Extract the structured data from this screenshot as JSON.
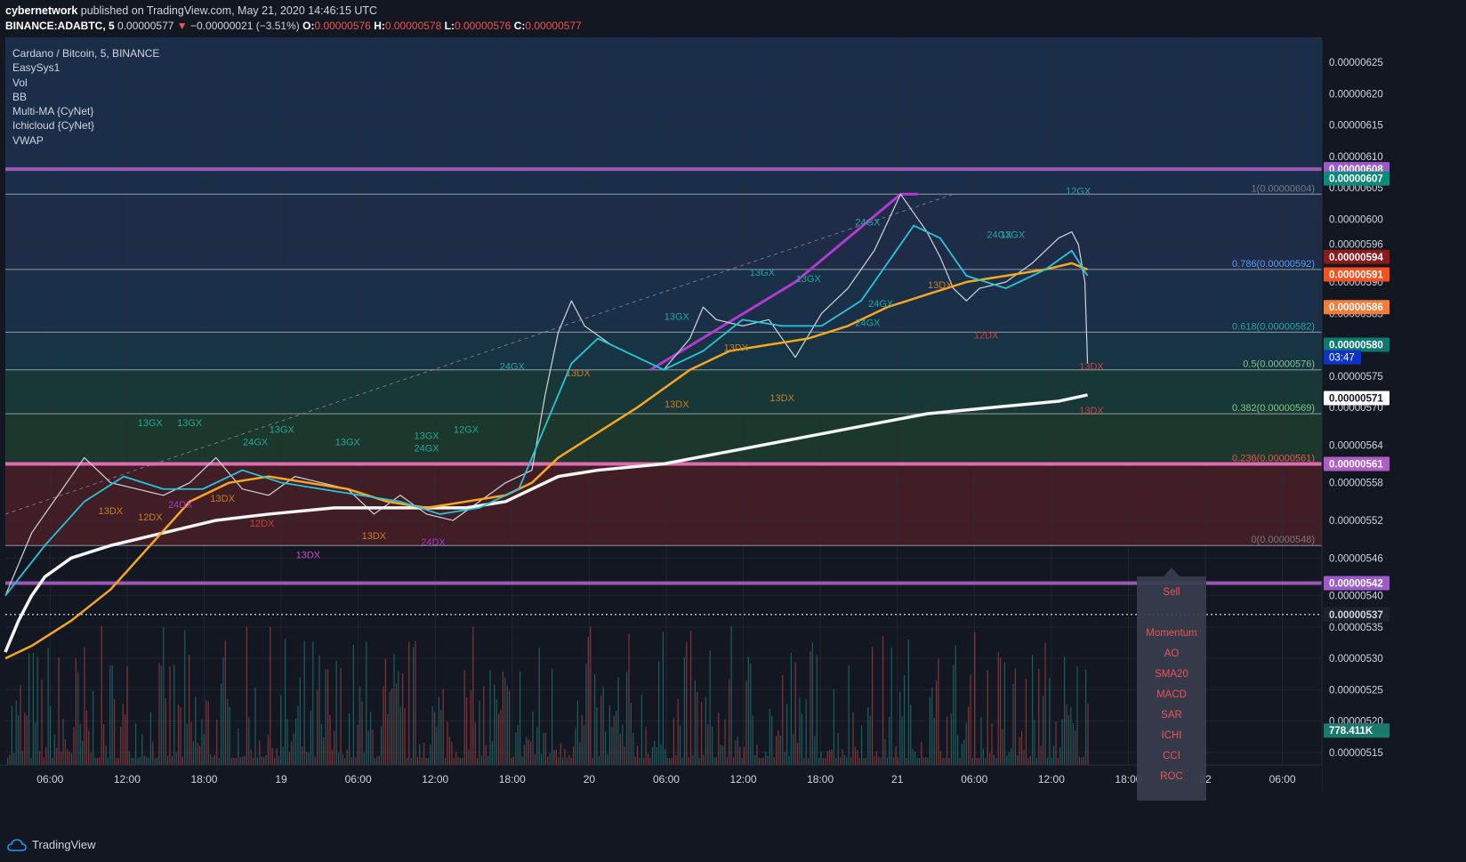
{
  "header": {
    "author": "cybernetwork",
    "published_text": "published on TradingView.com, May 21, 2020 14:46:15 UTC",
    "symbol_interval": "BINANCE:ADABTC, 5",
    "last_price": "0.00000577",
    "change_arrow": "▼",
    "change": "−0.00000021 (−3.51%)",
    "o_label": "O:",
    "o_value": "0.00000576",
    "h_label": "H:",
    "h_value": "0.00000578",
    "l_label": "L:",
    "l_value": "0.00000576",
    "c_label": "C:",
    "c_value": "0.00000577"
  },
  "legend": {
    "title": "Cardano / Bitcoin, 5, BINANCE",
    "indicators": [
      "EasySys1",
      "Vol",
      "BB",
      "Multi-MA {CyNet}",
      "Ichicloud {CyNet}",
      "VWAP"
    ]
  },
  "footer": {
    "brand": "TradingView"
  },
  "signal_panel": {
    "items": [
      "Sell",
      "Momentum",
      "AO",
      "SMA20",
      "MACD",
      "SAR",
      "ICHI",
      "CCI",
      "ROC"
    ]
  },
  "countdown": "03:47",
  "colors": {
    "background": "#131722",
    "grid": "#2a2e39",
    "fib_top": "#1d3557",
    "fib_mid": "#1f3a52",
    "fib_green": "#1b4332",
    "fib_red": "#5a1d24",
    "purple_line": "#9b59b6",
    "pink_line": "#e06bb0",
    "white_vwap": "#f5f5f5",
    "orange_ma": "#f5a623",
    "cyan_ma": "#26c6da",
    "red_ma": "#ef5350"
  },
  "chart_data": {
    "type": "line",
    "title": "Cardano / Bitcoin, 5, BINANCE",
    "xlabel": "",
    "ylabel": "",
    "ylim": [
      5.13e-06,
      6.29e-06
    ],
    "grid": true,
    "x_tick_labels": [
      "06:00",
      "12:00",
      "18:00",
      "19",
      "06:00",
      "12:00",
      "18:00",
      "20",
      "06:00",
      "12:00",
      "18:00",
      "21",
      "06:00",
      "12:00",
      "18:00",
      "22",
      "06:00"
    ],
    "y_tick_labels": [
      "0.00000625",
      "0.00000620",
      "0.00000615",
      "0.00000610",
      "0.00000605",
      "0.00000600",
      "0.00000596",
      "0.00000590",
      "0.00000585",
      "0.00000580",
      "0.00000575",
      "0.00000570",
      "0.00000564",
      "0.00000558",
      "0.00000552",
      "0.00000546",
      "0.00000540",
      "0.00000535",
      "0.00000530",
      "0.00000525",
      "0.00000520",
      "0.00000515"
    ],
    "fib_levels": [
      {
        "ratio": "1",
        "price": 6.04e-06,
        "label": "1(0.00000604)"
      },
      {
        "ratio": "0.786",
        "price": 5.92e-06,
        "label": "0.786(0.00000592)"
      },
      {
        "ratio": "0.618",
        "price": 5.82e-06,
        "label": "0.618(0.00000582)"
      },
      {
        "ratio": "0.5",
        "price": 5.76e-06,
        "label": "0.5(0.00000576)"
      },
      {
        "ratio": "0.382",
        "price": 5.69e-06,
        "label": "0.382(0.00000569)"
      },
      {
        "ratio": "0.236",
        "price": 5.61e-06,
        "label": "0.236(0.00000561)"
      },
      {
        "ratio": "0",
        "price": 5.48e-06,
        "label": "0(0.00000548)"
      }
    ],
    "horizontal_lines": [
      {
        "price": 6.08e-06,
        "color": "purple"
      },
      {
        "price": 5.61e-06,
        "color": "pink"
      },
      {
        "price": 5.42e-06,
        "color": "purple"
      },
      {
        "price": 5.37e-06,
        "color": "dotted"
      }
    ],
    "price_tags": [
      {
        "text": "0.00000608",
        "bg": "#9c5bc9",
        "fg": "#ffffff",
        "price": 6.08e-06
      },
      {
        "text": "0.00000607",
        "bg": "#0e8a7b",
        "fg": "#ffffff",
        "price": 6.065e-06
      },
      {
        "text": "0.00000594",
        "bg": "#8b1a1a",
        "fg": "#ffffff",
        "price": 5.94e-06
      },
      {
        "text": "0.00000591",
        "bg": "#f4511e",
        "fg": "#ffffff",
        "price": 5.912e-06
      },
      {
        "text": "0.00000586",
        "bg": "#f57c38",
        "fg": "#ffffff",
        "price": 5.86e-06
      },
      {
        "text": "0.00000580",
        "bg": "#0d7a6f",
        "fg": "#ffffff",
        "price": 5.8e-06
      },
      {
        "text": "0.00000571",
        "bg": "#ffffff",
        "fg": "#131722",
        "price": 5.715e-06
      },
      {
        "text": "0.00000561",
        "bg": "#b15bc4",
        "fg": "#ffffff",
        "price": 5.61e-06
      },
      {
        "text": "0.00000542",
        "bg": "#9c5bc9",
        "fg": "#ffffff",
        "price": 5.42e-06
      },
      {
        "text": "0.00000537",
        "bg": "#1e222d",
        "fg": "#d1d4dc",
        "price": 5.37e-06
      },
      {
        "text": "778.411K",
        "bg": "#1a7a6e",
        "fg": "#ffffff",
        "price": 5.185e-06
      }
    ],
    "signal_labels": [
      {
        "text": "13GX",
        "x": 0.11,
        "price": 5.67e-06,
        "color": "green"
      },
      {
        "text": "13GX",
        "x": 0.14,
        "price": 5.67e-06,
        "color": "green"
      },
      {
        "text": "24GX",
        "x": 0.19,
        "price": 5.64e-06,
        "color": "green"
      },
      {
        "text": "13GX",
        "x": 0.21,
        "price": 5.66e-06,
        "color": "green"
      },
      {
        "text": "13GX",
        "x": 0.26,
        "price": 5.64e-06,
        "color": "green"
      },
      {
        "text": "13GX",
        "x": 0.32,
        "price": 5.65e-06,
        "color": "green"
      },
      {
        "text": "24GX",
        "x": 0.32,
        "price": 5.63e-06,
        "color": "green"
      },
      {
        "text": "12GX",
        "x": 0.35,
        "price": 5.66e-06,
        "color": "green"
      },
      {
        "text": "24GX",
        "x": 0.385,
        "price": 5.76e-06,
        "color": "green"
      },
      {
        "text": "13GX",
        "x": 0.51,
        "price": 5.84e-06,
        "color": "green"
      },
      {
        "text": "13GX",
        "x": 0.575,
        "price": 5.91e-06,
        "color": "green"
      },
      {
        "text": "13GX",
        "x": 0.61,
        "price": 5.9e-06,
        "color": "green"
      },
      {
        "text": "24GX",
        "x": 0.655,
        "price": 5.99e-06,
        "color": "green"
      },
      {
        "text": "24GX",
        "x": 0.655,
        "price": 5.83e-06,
        "color": "green"
      },
      {
        "text": "24GX",
        "x": 0.665,
        "price": 5.86e-06,
        "color": "green"
      },
      {
        "text": "24GX",
        "x": 0.755,
        "price": 5.97e-06,
        "color": "green"
      },
      {
        "text": "13GX",
        "x": 0.765,
        "price": 5.97e-06,
        "color": "green"
      },
      {
        "text": "12GX",
        "x": 0.815,
        "price": 6.04e-06,
        "color": "green"
      },
      {
        "text": "13DX",
        "x": 0.08,
        "price": 5.53e-06,
        "color": "orange"
      },
      {
        "text": "12DX",
        "x": 0.11,
        "price": 5.52e-06,
        "color": "orange"
      },
      {
        "text": "13DX",
        "x": 0.165,
        "price": 5.55e-06,
        "color": "orange"
      },
      {
        "text": "12DX",
        "x": 0.195,
        "price": 5.51e-06,
        "color": "red"
      },
      {
        "text": "13DX",
        "x": 0.23,
        "price": 5.46e-06,
        "color": "orange"
      },
      {
        "text": "13DX",
        "x": 0.28,
        "price": 5.49e-06,
        "color": "orange"
      },
      {
        "text": "13DX",
        "x": 0.435,
        "price": 5.75e-06,
        "color": "orange"
      },
      {
        "text": "13DX",
        "x": 0.51,
        "price": 5.7e-06,
        "color": "orange"
      },
      {
        "text": "13DX",
        "x": 0.555,
        "price": 5.79e-06,
        "color": "orange"
      },
      {
        "text": "13DX",
        "x": 0.59,
        "price": 5.71e-06,
        "color": "orange"
      },
      {
        "text": "13DX",
        "x": 0.71,
        "price": 5.89e-06,
        "color": "orange"
      },
      {
        "text": "12DX",
        "x": 0.745,
        "price": 5.81e-06,
        "color": "red"
      },
      {
        "text": "13DX",
        "x": 0.825,
        "price": 5.76e-06,
        "color": "red"
      },
      {
        "text": "13DX",
        "x": 0.825,
        "price": 5.69e-06,
        "color": "red"
      },
      {
        "text": "24DX",
        "x": 0.133,
        "price": 5.54e-06,
        "color": "purple"
      },
      {
        "text": "13DX",
        "x": 0.23,
        "price": 5.46e-06,
        "color": "purple"
      },
      {
        "text": "24DX",
        "x": 0.325,
        "price": 5.48e-06,
        "color": "purple"
      }
    ],
    "series": [
      {
        "name": "price",
        "color": "#d1d4dc",
        "x": [
          0,
          0.02,
          0.04,
          0.06,
          0.08,
          0.1,
          0.12,
          0.14,
          0.16,
          0.18,
          0.2,
          0.22,
          0.24,
          0.26,
          0.28,
          0.3,
          0.32,
          0.34,
          0.36,
          0.38,
          0.4,
          0.41,
          0.42,
          0.43,
          0.44,
          0.46,
          0.48,
          0.5,
          0.52,
          0.53,
          0.54,
          0.56,
          0.58,
          0.6,
          0.62,
          0.64,
          0.66,
          0.68,
          0.69,
          0.7,
          0.71,
          0.72,
          0.73,
          0.74,
          0.76,
          0.78,
          0.8,
          0.81,
          0.815,
          0.82,
          0.822
        ],
        "y": [
          5.4e-06,
          5.5e-06,
          5.56e-06,
          5.62e-06,
          5.58e-06,
          5.57e-06,
          5.56e-06,
          5.58e-06,
          5.62e-06,
          5.57e-06,
          5.56e-06,
          5.59e-06,
          5.58e-06,
          5.57e-06,
          5.53e-06,
          5.56e-06,
          5.53e-06,
          5.52e-06,
          5.55e-06,
          5.58e-06,
          5.6e-06,
          5.72e-06,
          5.82e-06,
          5.87e-06,
          5.83e-06,
          5.8e-06,
          5.78e-06,
          5.76e-06,
          5.81e-06,
          5.86e-06,
          5.84e-06,
          5.83e-06,
          5.84e-06,
          5.78e-06,
          5.85e-06,
          5.89e-06,
          5.95e-06,
          6.04e-06,
          6.01e-06,
          5.98e-06,
          5.94e-06,
          5.89e-06,
          5.87e-06,
          5.89e-06,
          5.9e-06,
          5.93e-06,
          5.97e-06,
          5.98e-06,
          5.96e-06,
          5.9e-06,
          5.77e-06
        ]
      },
      {
        "name": "vwap",
        "color": "#f5f5f5",
        "x": [
          0,
          0.01,
          0.02,
          0.03,
          0.05,
          0.08,
          0.12,
          0.16,
          0.2,
          0.25,
          0.3,
          0.35,
          0.38,
          0.4,
          0.42,
          0.45,
          0.5,
          0.55,
          0.6,
          0.65,
          0.7,
          0.75,
          0.8,
          0.822
        ],
        "y": [
          5.31e-06,
          5.36e-06,
          5.4e-06,
          5.43e-06,
          5.46e-06,
          5.48e-06,
          5.5e-06,
          5.52e-06,
          5.53e-06,
          5.54e-06,
          5.54e-06,
          5.54e-06,
          5.55e-06,
          5.57e-06,
          5.59e-06,
          5.6e-06,
          5.61e-06,
          5.63e-06,
          5.65e-06,
          5.67e-06,
          5.69e-06,
          5.7e-06,
          5.71e-06,
          5.72e-06
        ]
      },
      {
        "name": "slow-ma",
        "color": "#f5a623",
        "x": [
          0,
          0.02,
          0.05,
          0.08,
          0.11,
          0.14,
          0.17,
          0.2,
          0.23,
          0.26,
          0.29,
          0.32,
          0.35,
          0.38,
          0.4,
          0.42,
          0.45,
          0.48,
          0.5,
          0.52,
          0.55,
          0.58,
          0.61,
          0.64,
          0.67,
          0.7,
          0.73,
          0.76,
          0.79,
          0.81,
          0.822
        ],
        "y": [
          5.3e-06,
          5.32e-06,
          5.36e-06,
          5.41e-06,
          5.48e-06,
          5.55e-06,
          5.58e-06,
          5.59e-06,
          5.58e-06,
          5.57e-06,
          5.55e-06,
          5.54e-06,
          5.55e-06,
          5.56e-06,
          5.58e-06,
          5.62e-06,
          5.66e-06,
          5.7e-06,
          5.73e-06,
          5.76e-06,
          5.79e-06,
          5.8e-06,
          5.81e-06,
          5.83e-06,
          5.86e-06,
          5.88e-06,
          5.9e-06,
          5.91e-06,
          5.92e-06,
          5.93e-06,
          5.92e-06
        ]
      },
      {
        "name": "fast-ma",
        "color": "#26c6da",
        "x": [
          0,
          0.03,
          0.06,
          0.09,
          0.12,
          0.15,
          0.18,
          0.21,
          0.24,
          0.27,
          0.3,
          0.33,
          0.36,
          0.39,
          0.41,
          0.43,
          0.45,
          0.47,
          0.5,
          0.53,
          0.56,
          0.59,
          0.62,
          0.65,
          0.67,
          0.69,
          0.71,
          0.73,
          0.76,
          0.79,
          0.81,
          0.822
        ],
        "y": [
          5.4e-06,
          5.48e-06,
          5.55e-06,
          5.59e-06,
          5.57e-06,
          5.57e-06,
          5.6e-06,
          5.58e-06,
          5.57e-06,
          5.56e-06,
          5.55e-06,
          5.53e-06,
          5.54e-06,
          5.57e-06,
          5.67e-06,
          5.77e-06,
          5.81e-06,
          5.79e-06,
          5.76e-06,
          5.79e-06,
          5.84e-06,
          5.83e-06,
          5.83e-06,
          5.87e-06,
          5.93e-06,
          5.99e-06,
          5.97e-06,
          5.91e-06,
          5.89e-06,
          5.92e-06,
          5.95e-06,
          5.91e-06
        ]
      }
    ]
  }
}
